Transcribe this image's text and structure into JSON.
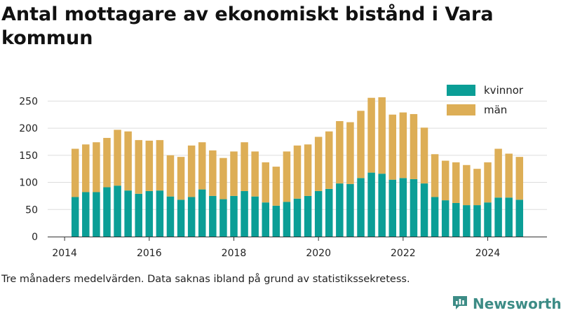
{
  "title": "Antal mottagare av ekonomiskt bistånd i Vara kommun",
  "footnote": "Tre månaders medelvärden. Data saknas ibland på grund av statistikssekretess.",
  "brand": {
    "name": "Newsworthy",
    "icon": "newsworthy-logo-icon"
  },
  "colors": {
    "kvinnor": "#0b9e96",
    "man": "#ddae56",
    "grid": "#dddddd",
    "axis": "#333333"
  },
  "chart_data": {
    "type": "bar",
    "stacked": true,
    "x_tick_labels": [
      "2014",
      "2016",
      "2018",
      "2020",
      "2022",
      "2024"
    ],
    "x_ticks": [
      2014,
      2016,
      2018,
      2020,
      2022,
      2024
    ],
    "xlim": [
      2013.6,
      2025.4
    ],
    "ylim": [
      0,
      275
    ],
    "y_ticks": [
      0,
      50,
      100,
      150,
      200,
      250
    ],
    "grid": true,
    "legend_position": "top-right",
    "x": [
      2014.25,
      2014.5,
      2014.75,
      2015.0,
      2015.25,
      2015.5,
      2015.75,
      2016.0,
      2016.25,
      2016.5,
      2016.75,
      2017.0,
      2017.25,
      2017.5,
      2017.75,
      2018.0,
      2018.25,
      2018.5,
      2018.75,
      2019.0,
      2019.25,
      2019.5,
      2019.75,
      2020.0,
      2020.25,
      2020.5,
      2020.75,
      2021.0,
      2021.25,
      2021.5,
      2021.75,
      2022.0,
      2022.25,
      2022.5,
      2022.75,
      2023.0,
      2023.25,
      2023.5,
      2023.75,
      2024.0,
      2024.25,
      2024.5,
      2024.75
    ],
    "series": [
      {
        "name": "kvinnor",
        "color": "#0b9e96",
        "values": [
          73,
          82,
          82,
          91,
          94,
          85,
          79,
          84,
          85,
          74,
          68,
          73,
          87,
          75,
          69,
          75,
          84,
          74,
          63,
          57,
          64,
          70,
          75,
          84,
          88,
          98,
          97,
          108,
          118,
          116,
          105,
          108,
          106,
          98,
          73,
          67,
          62,
          58,
          58,
          63,
          72,
          72,
          68
        ]
      },
      {
        "name": "män",
        "color": "#ddae56",
        "values": [
          89,
          88,
          92,
          91,
          103,
          109,
          99,
          93,
          93,
          76,
          79,
          95,
          87,
          84,
          76,
          82,
          90,
          83,
          74,
          72,
          93,
          98,
          95,
          100,
          106,
          115,
          114,
          124,
          138,
          141,
          120,
          121,
          120,
          103,
          79,
          73,
          75,
          74,
          67,
          74,
          90,
          81,
          79
        ]
      }
    ]
  }
}
